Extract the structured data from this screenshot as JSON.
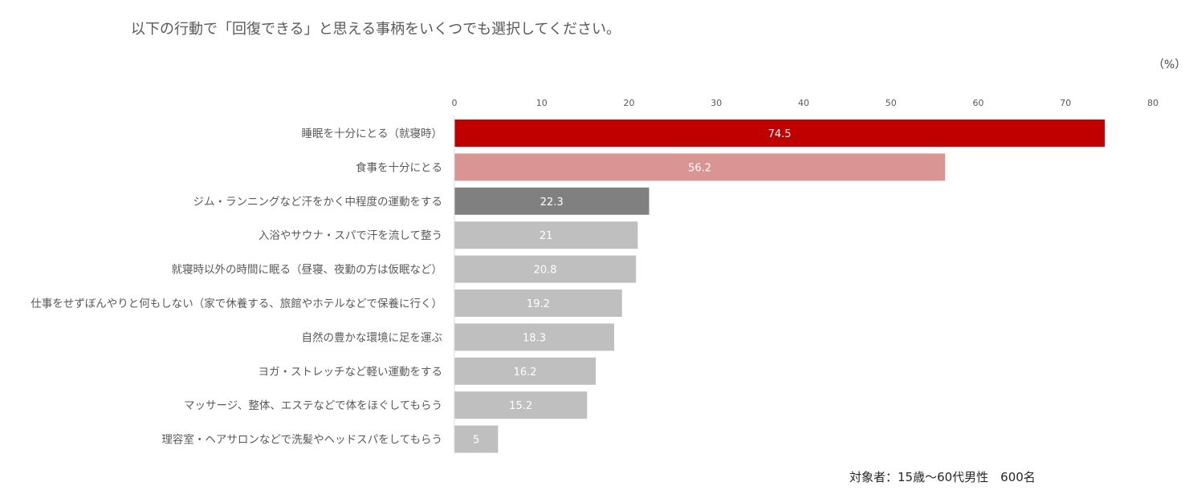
{
  "question": "以下の行動で「回復できる」と思える事柄をいくつでも選択してください。",
  "unit_label": "（%）",
  "footnote": "対象者：15歳～60代男性　600名",
  "chart_data": {
    "type": "bar",
    "orientation": "horizontal",
    "xlim": [
      0,
      80
    ],
    "ticks": [
      0,
      10,
      20,
      30,
      40,
      50,
      60,
      70,
      80
    ],
    "grid": false,
    "categories": [
      "睡眠を十分にとる（就寝時）",
      "食事を十分にとる",
      "ジム・ランニングなど汗をかく中程度の運動をする",
      "入浴やサウナ・スパで汗を流して整う",
      "就寝時以外の時間に眠る（昼寝、夜勤の方は仮眠など）",
      "仕事をせずぼんやりと何もしない（家で休養する、旅館やホテルなどで保養に行く）",
      "自然の豊かな環境に足を運ぶ",
      "ヨガ・ストレッチなど軽い運動をする",
      "マッサージ、整体、エステなどで体をほぐしてもらう",
      "理容室・ヘアサロンなどで洗髪やヘッドスパをしてもらう"
    ],
    "values": [
      74.5,
      56.2,
      22.3,
      21,
      20.8,
      19.2,
      18.3,
      16.2,
      15.2,
      5
    ],
    "data_labels": [
      "74.5",
      "56.2",
      "22.3",
      "21",
      "20.8",
      "19.2",
      "18.3",
      "16.2",
      "15.2",
      "5"
    ],
    "colors": [
      "#c00000",
      "#d99594",
      "#808080",
      "#bfbfbf",
      "#bfbfbf",
      "#bfbfbf",
      "#bfbfbf",
      "#bfbfbf",
      "#bfbfbf",
      "#bfbfbf"
    ]
  }
}
